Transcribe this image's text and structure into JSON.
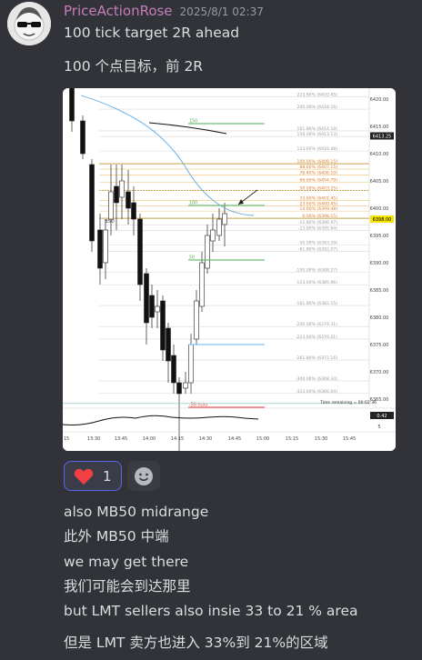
{
  "message": {
    "username": "PriceActionRose",
    "timestamp": "2025/8/1 02:37",
    "lines": [
      "100 tick target 2R ahead",
      "100 个点目标，前 2R"
    ]
  },
  "chart": {
    "labels": {
      "b50": "B50",
      "time_remaining": "Time remaining = 00:02:36",
      "tick_150": "150",
      "tick_100": "100",
      "tick_50": "50",
      "ticks_neg50": "-50 ticks",
      "indicator_value": "0.42",
      "indicator_mark": "5"
    },
    "price_axis": [
      "6420.00",
      "6415.00",
      "6410.00",
      "6405.00",
      "6400.00",
      "6395.00",
      "6390.00",
      "6385.00",
      "6380.00",
      "6375.00",
      "6370.00",
      "6365.00"
    ],
    "price_axis_highlight": [
      "6413.25",
      "6398.00"
    ],
    "fib_labels": [
      "223.60% (6420.45)",
      "200.00% (6418.16)",
      "161.80% (6414.18)",
      "150.00% (6413.13)",
      "123.60% (6410.48)",
      "100.00% (6408.15)",
      "88.60% (6407.15)",
      "76.40% (6406.10)",
      "66.60% (6404.79)",
      "50.00% (6403.25)",
      "33.60% (6401.45)",
      "23.60% (6400.45)",
      "14.60% (6399.48)",
      "0.00% (6398.15)",
      "-11.80% (6396.97)",
      "-23.60% (6395.94)",
      "-50.00% (6393.29)",
      "-61.80% (6392.07)",
      "-100.00% (6388.27)",
      "-123.60% (6385.96)",
      "-161.80% (6382.15)",
      "-200.00% (6378.31)",
      "-223.60% (6376.01)",
      "-261.80% (6372.16)",
      "-300.00% (6368.34)",
      "-323.60% (6366.04)"
    ],
    "time_axis": [
      "15",
      "13:30",
      "13:45",
      "14:00",
      "14:15",
      "14:30",
      "14:45",
      "15:00",
      "15:15",
      "15:30",
      "15:45"
    ]
  },
  "reactions": [
    {
      "emoji": "heart",
      "count": "1"
    }
  ],
  "followups": [
    "also MB50 midrange",
    "此外 MB50 中端",
    "we may get there",
    "我们可能会到达那里",
    "but LMT sellers also insie 33 to 21 % area",
    "但是 LMT 卖方也进入 33%到 21%的区域"
  ],
  "colors": {
    "background": "#313338",
    "username": "#c77dba",
    "reaction_border": "#5865f2",
    "heart": "#f23f43"
  }
}
